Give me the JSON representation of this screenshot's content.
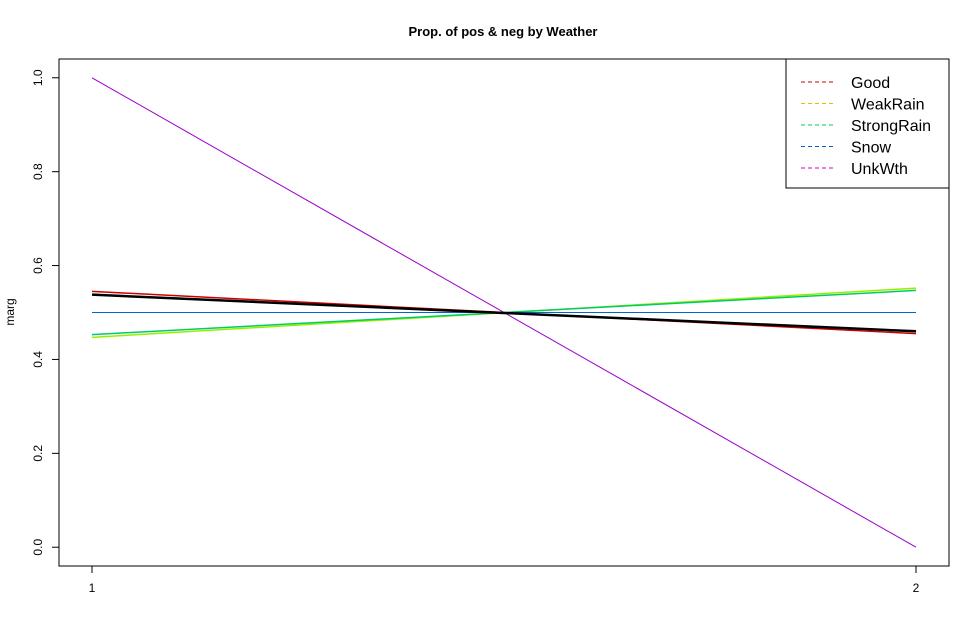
{
  "chart_data": {
    "type": "line",
    "title": "Prop. of pos & neg by Weather",
    "xlabel": "",
    "ylabel": "marg",
    "x": [
      1,
      2
    ],
    "x_ticks": [
      "1",
      "2"
    ],
    "y_ticks": [
      "0.0",
      "0.2",
      "0.4",
      "0.6",
      "0.8",
      "1.0"
    ],
    "ylim": [
      -0.04,
      1.04
    ],
    "grid": false,
    "legend_position": "top-right",
    "legend": [
      {
        "label": "Good",
        "color": "#cc0000",
        "dash": true
      },
      {
        "label": "WeakRain",
        "color": "#cccc00",
        "dash": true
      },
      {
        "label": "StrongRain",
        "color": "#00cc66",
        "dash": true
      },
      {
        "label": "Snow",
        "color": "#0066cc",
        "dash": true
      },
      {
        "label": "UnkWth",
        "color": "#cc00cc",
        "dash": true
      }
    ],
    "series": [
      {
        "values": [
          0.545,
          0.455
        ],
        "color": "#cc0000",
        "width": 1.5
      },
      {
        "values": [
          0.447,
          0.552
        ],
        "color": "#99ee00",
        "width": 1.5
      },
      {
        "values": [
          0.453,
          0.547
        ],
        "color": "#00cc66",
        "width": 1.5
      },
      {
        "values": [
          0.5,
          0.5
        ],
        "color": "#0066cc",
        "width": 1
      },
      {
        "values": [
          1.0,
          0.0
        ],
        "color": "#9900cc",
        "width": 1
      },
      {
        "values": [
          0.538,
          0.46
        ],
        "color": "#000000",
        "width": 2.5
      }
    ]
  }
}
